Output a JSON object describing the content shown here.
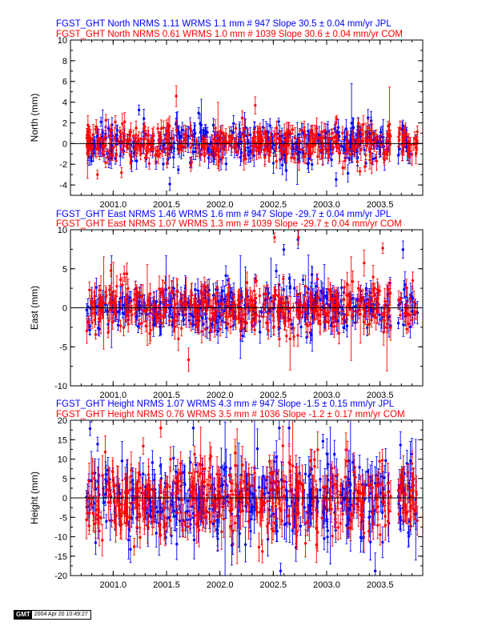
{
  "colors": {
    "jpl": "#0000ff",
    "com": "#ff0000",
    "axis": "#000000"
  },
  "footer": {
    "logo": "GMT",
    "timestamp": "2004 Apr 20 10:49:27"
  },
  "chart_data": [
    {
      "type": "scatter",
      "ylabel": "North (mm)",
      "ylim": [
        -5,
        10
      ],
      "yticks": [
        -4,
        -2,
        0,
        2,
        4,
        6,
        8,
        10
      ],
      "xlim": [
        2000.6,
        2003.9
      ],
      "xticks": [
        "2001.0",
        "2001.5",
        "2002.0",
        "2002.5",
        "2003.0",
        "2003.5"
      ],
      "legend": [
        {
          "text": "FGST_GHT North NRMS 1.11 WRMS  1.1 mm # 947 Slope   30.5 ±  0.04 mm/yr JPL",
          "color": "#0000ff"
        },
        {
          "text": "FGST_GHT North NRMS 0.61 WRMS  1.0 mm # 1039 Slope   30.6 ±  0.04 mm/yr COM",
          "color": "#ff0000"
        }
      ],
      "series": [
        {
          "id": "JPL",
          "color": "#0000ff",
          "points": 947,
          "nrms": 1.11,
          "wrms_mm": 1.1,
          "slope_mm_yr": 30.5,
          "slope_sigma": 0.04
        },
        {
          "id": "COM",
          "color": "#ff0000",
          "points": 1039,
          "nrms": 0.61,
          "wrms_mm": 1.0,
          "slope_mm_yr": 30.6,
          "slope_sigma": 0.04
        }
      ],
      "data_span": [
        2000.75,
        2003.85
      ],
      "gap": [
        2003.6,
        2003.67
      ]
    },
    {
      "type": "scatter",
      "ylabel": "East (mm)",
      "ylim": [
        -10,
        10
      ],
      "yticks": [
        -10,
        -5,
        0,
        5,
        10
      ],
      "xlim": [
        2000.6,
        2003.9
      ],
      "xticks": [
        "2001.0",
        "2001.5",
        "2002.0",
        "2002.5",
        "2003.0",
        "2003.5"
      ],
      "legend": [
        {
          "text": "FGST_GHT East NRMS 1.46 WRMS  1.6 mm # 947 Slope  -29.7 ±  0.04 mm/yr JPL",
          "color": "#0000ff"
        },
        {
          "text": "FGST_GHT East NRMS 1.07 WRMS  1.3 mm # 1039 Slope  -29.7 ±  0.04 mm/yr COM",
          "color": "#ff0000"
        }
      ],
      "series": [
        {
          "id": "JPL",
          "color": "#0000ff",
          "points": 947,
          "nrms": 1.46,
          "wrms_mm": 1.6,
          "slope_mm_yr": -29.7,
          "slope_sigma": 0.04
        },
        {
          "id": "COM",
          "color": "#ff0000",
          "points": 1039,
          "nrms": 1.07,
          "wrms_mm": 1.3,
          "slope_mm_yr": -29.7,
          "slope_sigma": 0.04
        }
      ],
      "data_span": [
        2000.75,
        2003.85
      ],
      "gap": [
        2003.6,
        2003.67
      ]
    },
    {
      "type": "scatter",
      "ylabel": "Height (mm)",
      "ylim": [
        -20,
        20
      ],
      "yticks": [
        -20,
        -15,
        -10,
        -5,
        0,
        5,
        10,
        15,
        20
      ],
      "xlim": [
        2000.6,
        2003.9
      ],
      "xticks": [
        "2001.0",
        "2001.5",
        "2002.0",
        "2002.5",
        "2003.0",
        "2003.5"
      ],
      "legend": [
        {
          "text": "FGST_GHT Height NRMS 1.07 WRMS  4.3 mm # 947 Slope   -1.5 ±  0.15 mm/yr JPL",
          "color": "#0000ff"
        },
        {
          "text": "FGST_GHT Height NRMS 0.76 WRMS  3.5 mm # 1036 Slope   -1.2 ±  0.17 mm/yr COM",
          "color": "#ff0000"
        }
      ],
      "series": [
        {
          "id": "JPL",
          "color": "#0000ff",
          "points": 947,
          "nrms": 1.07,
          "wrms_mm": 4.3,
          "slope_mm_yr": -1.5,
          "slope_sigma": 0.15
        },
        {
          "id": "COM",
          "color": "#ff0000",
          "points": 1036,
          "nrms": 0.76,
          "wrms_mm": 3.5,
          "slope_mm_yr": -1.2,
          "slope_sigma": 0.17
        }
      ],
      "data_span": [
        2000.75,
        2003.85
      ],
      "gap": [
        2003.6,
        2003.67
      ]
    }
  ]
}
